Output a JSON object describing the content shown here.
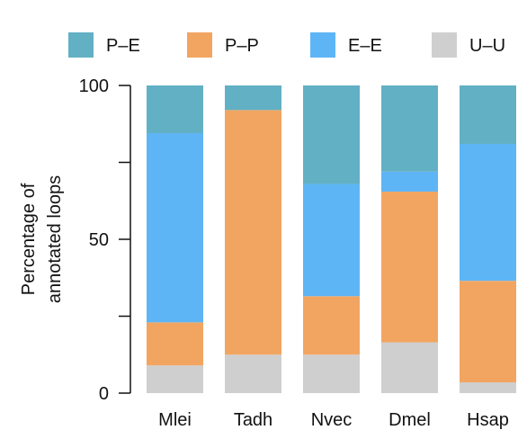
{
  "chart_data": {
    "type": "bar",
    "stacked": true,
    "categories": [
      "Mlei",
      "Tadh",
      "Nvec",
      "Dmel",
      "Hsap"
    ],
    "series": [
      {
        "name": "U–U",
        "color": "#cfcfcf",
        "values": [
          9,
          12.5,
          12.5,
          16.5,
          3.5
        ]
      },
      {
        "name": "P–P",
        "color": "#f2a561",
        "values": [
          14,
          79.5,
          19,
          49,
          33
        ]
      },
      {
        "name": "E–E",
        "color": "#5eb5f5",
        "values": [
          61.5,
          0,
          36.5,
          6.5,
          44.5
        ]
      },
      {
        "name": "P–E",
        "color": "#62b0c4",
        "values": [
          15.5,
          8,
          32,
          28,
          19
        ]
      }
    ],
    "legend_order": [
      "P–E",
      "P–P",
      "E–E",
      "U–U"
    ],
    "legend_position": "top",
    "ylabel": [
      "Percentage of",
      "annotated loops"
    ],
    "ylim": [
      0,
      100
    ],
    "yticks": [
      0,
      25,
      50,
      75,
      100
    ],
    "ytick_labels": [
      "0",
      "",
      "50",
      "",
      "100"
    ],
    "grid": false
  }
}
